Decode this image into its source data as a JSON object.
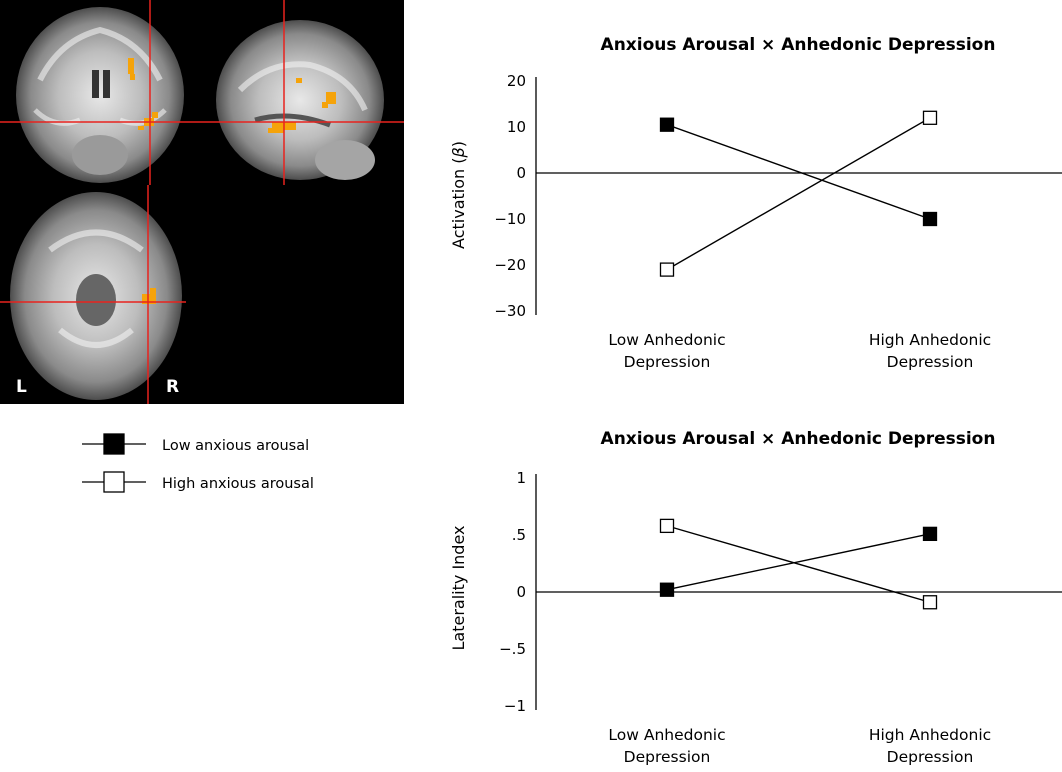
{
  "brain_images": {
    "left_label": "L",
    "right_label": "R",
    "crosshair_color": "#e8231e",
    "activation_color": "#f5a30a",
    "background_color": "#000000"
  },
  "legend": {
    "items": [
      {
        "label": "Low anxious arousal",
        "marker": "filled-square",
        "color": "#000000"
      },
      {
        "label": "High anxious arousal",
        "marker": "open-square",
        "color": "#ffffff"
      }
    ]
  },
  "chart_data": [
    {
      "type": "line",
      "title": "Anxious Arousal × Anhedonic Depression",
      "ylabel_text": "Activation (",
      "ylabel_symbol": "β",
      "ylabel_close": ")",
      "categories": [
        {
          "line1": "Low Anhedonic",
          "line2": "Depression"
        },
        {
          "line1": "High Anhedonic",
          "line2": "Depression"
        }
      ],
      "ylim": [
        -30,
        20
      ],
      "yticks": [
        {
          "value": 20,
          "label": "20"
        },
        {
          "value": 10,
          "label": "10"
        },
        {
          "value": 0,
          "label": "0"
        },
        {
          "value": -10,
          "label": "-10"
        },
        {
          "value": -20,
          "label": "-20"
        },
        {
          "value": -30,
          "label": "-30"
        }
      ],
      "series": [
        {
          "name": "Low anxious arousal",
          "marker": "filled-square",
          "values": [
            10.5,
            -10
          ]
        },
        {
          "name": "High anxious arousal",
          "marker": "open-square",
          "values": [
            -21,
            12
          ]
        }
      ]
    },
    {
      "type": "line",
      "title": "Anxious Arousal × Anhedonic Depression",
      "ylabel_text": "Laterality Index",
      "categories": [
        {
          "line1": "Low Anhedonic",
          "line2": "Depression"
        },
        {
          "line1": "High Anhedonic",
          "line2": "Depression"
        }
      ],
      "ylim": [
        -1,
        1
      ],
      "yticks": [
        {
          "value": 1,
          "label": "1"
        },
        {
          "value": 0.5,
          "label": ".5"
        },
        {
          "value": 0,
          "label": "0"
        },
        {
          "value": -0.5,
          "label": "-.5"
        },
        {
          "value": -1,
          "label": "-1"
        }
      ],
      "series": [
        {
          "name": "Low anxious arousal",
          "marker": "filled-square",
          "values": [
            0.02,
            0.51
          ]
        },
        {
          "name": "High anxious arousal",
          "marker": "open-square",
          "values": [
            0.58,
            -0.09
          ]
        }
      ]
    }
  ]
}
